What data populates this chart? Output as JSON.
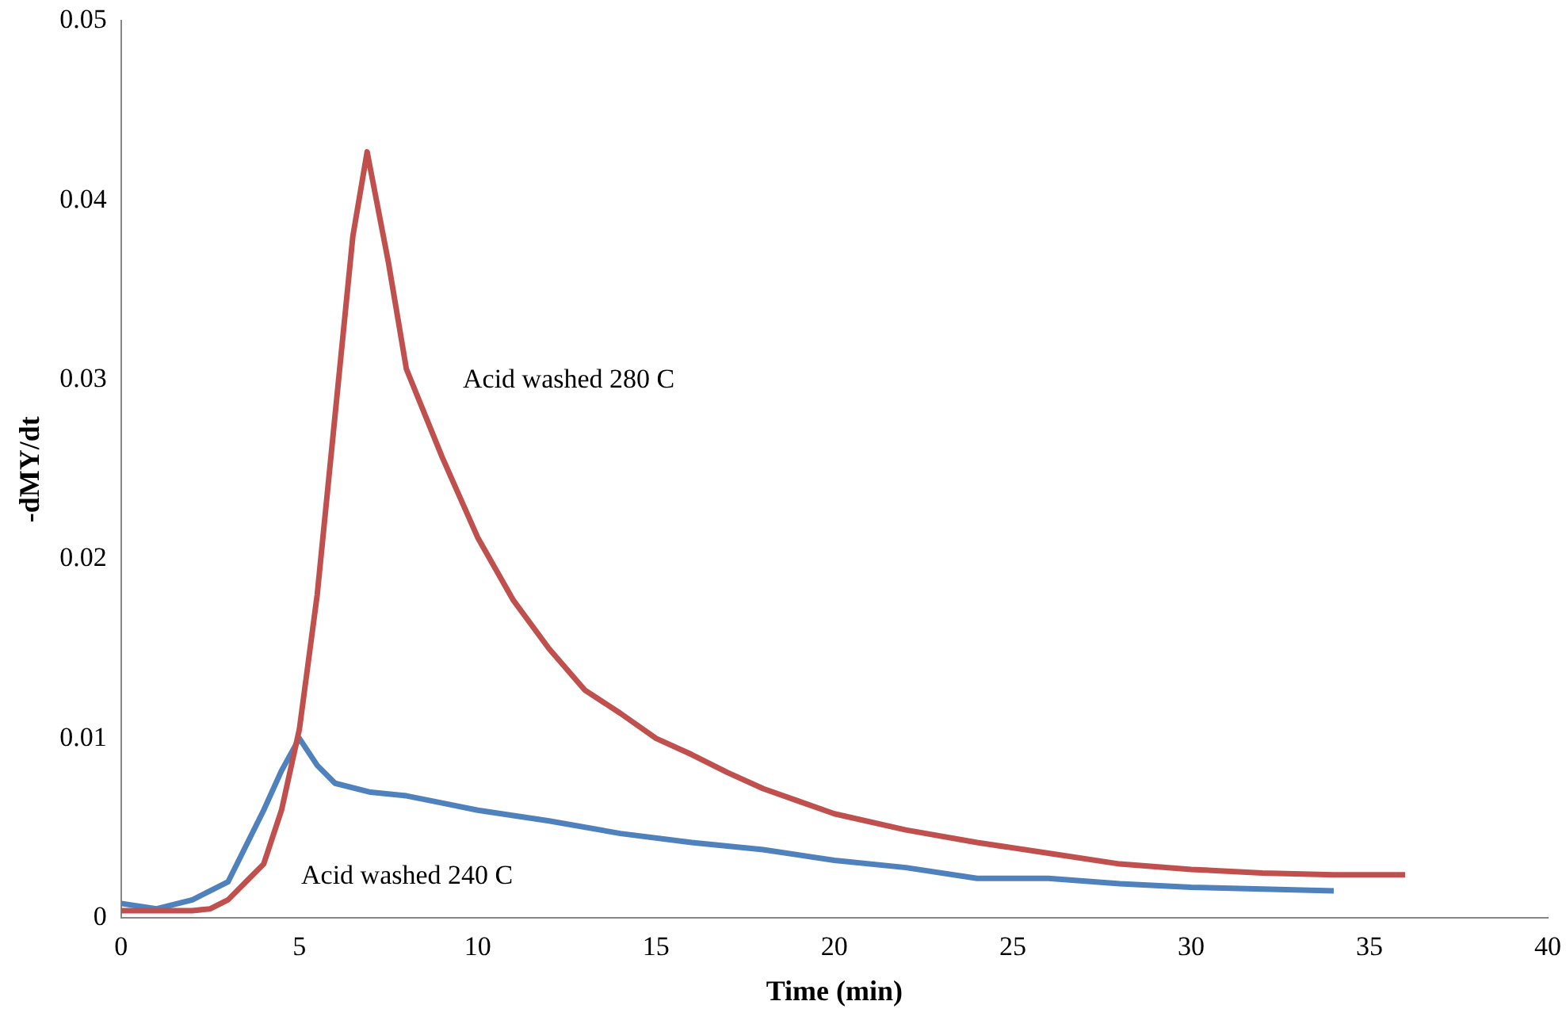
{
  "chart_data": {
    "type": "line",
    "xlabel": "Time (min)",
    "ylabel": "-dMY/dt",
    "xlim": [
      0,
      40
    ],
    "xticks": [
      0,
      5,
      10,
      15,
      20,
      25,
      30,
      35,
      40
    ],
    "ylim": [
      0,
      0.05
    ],
    "yticks": [
      0,
      0.01,
      0.02,
      0.03,
      0.04,
      0.05
    ],
    "grid": false,
    "legend": false,
    "marker": "none",
    "line_style": "solid",
    "series": [
      {
        "color": "#c0504d",
        "x": [
          0,
          1,
          2,
          2.5,
          3,
          3.5,
          4,
          4.5,
          5,
          5.5,
          6,
          6.5,
          6.9,
          7.5,
          8,
          9,
          10,
          11,
          12,
          13,
          14,
          15,
          16,
          17,
          18,
          19,
          20,
          22,
          24,
          26,
          28,
          30,
          32,
          34,
          36
        ],
        "values": [
          0.0004,
          0.0004,
          0.0004,
          0.0005,
          0.001,
          0.002,
          0.003,
          0.006,
          0.0105,
          0.018,
          0.028,
          0.038,
          0.0427,
          0.0365,
          0.0306,
          0.0257,
          0.0212,
          0.0177,
          0.015,
          0.0127,
          0.0114,
          0.01,
          0.0091,
          0.0081,
          0.0072,
          0.0065,
          0.0058,
          0.0049,
          0.0042,
          0.0036,
          0.003,
          0.0027,
          0.0025,
          0.0024,
          0.0024
        ]
      },
      {
        "color": "#4f81bd",
        "x": [
          0,
          1,
          2,
          3,
          3.5,
          4,
          4.5,
          5,
          5.5,
          6,
          7,
          8,
          9,
          10,
          12,
          14,
          16,
          18,
          20,
          22,
          24,
          26,
          28,
          30,
          32,
          34
        ],
        "values": [
          0.0008,
          0.0005,
          0.001,
          0.002,
          0.004,
          0.006,
          0.0082,
          0.01,
          0.0085,
          0.0075,
          0.007,
          0.0068,
          0.0064,
          0.006,
          0.0054,
          0.0047,
          0.0042,
          0.0038,
          0.0032,
          0.0028,
          0.0022,
          0.0022,
          0.0019,
          0.0017,
          0.0016,
          0.0015
        ]
      }
    ],
    "annotations": [
      "Acid washed 280 C",
      "Acid washed 240 C"
    ]
  }
}
